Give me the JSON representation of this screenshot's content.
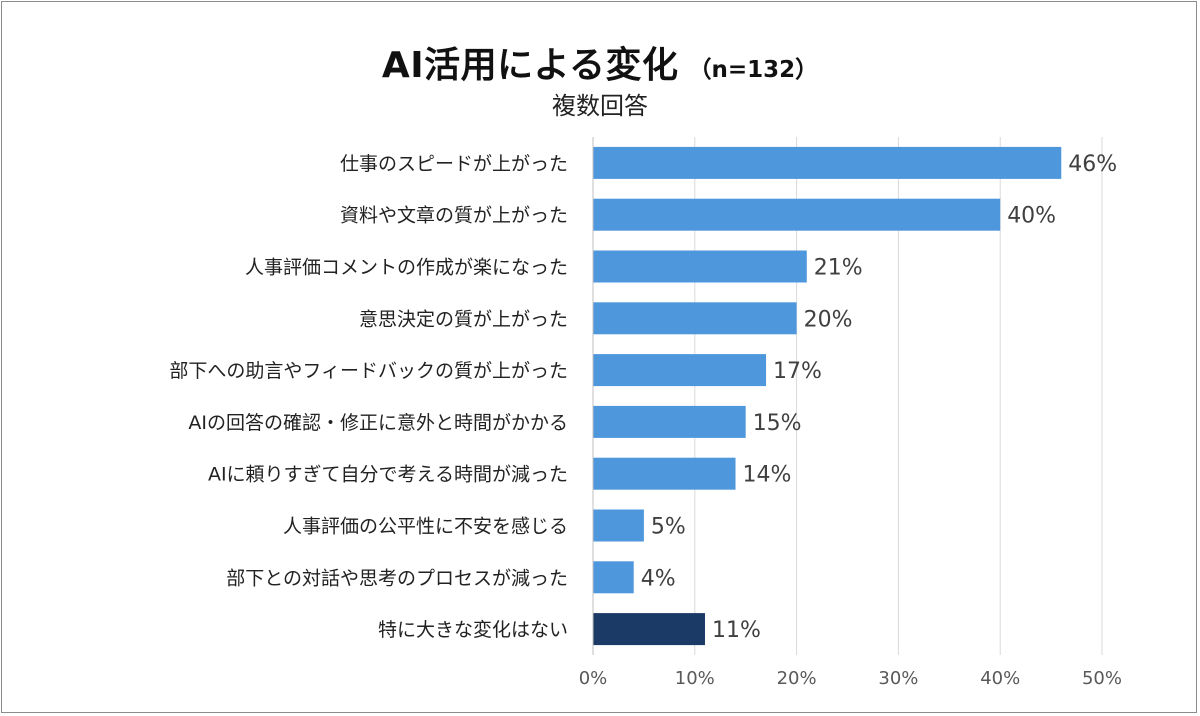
{
  "chart_data": {
    "type": "bar",
    "orientation": "horizontal",
    "title": "AI活用による変化",
    "title_n": "（n=132）",
    "subtitle": "複数回答",
    "categories": [
      "仕事のスピードが上がった",
      "資料や文章の質が上がった",
      "人事評価コメントの作成が楽になった",
      "意思決定の質が上がった",
      "部下への助言やフィードバックの質が上がった",
      "AIの回答の確認・修正に意外と時間がかかる",
      "AIに頼りすぎて自分で考える時間が減った",
      "人事評価の公平性に不安を感じる",
      "部下との対話や思考のプロセスが減った",
      "特に大きな変化はない"
    ],
    "values": [
      46,
      40,
      21,
      20,
      17,
      15,
      14,
      5,
      4,
      11
    ],
    "value_labels": [
      "46%",
      "40%",
      "21%",
      "20%",
      "17%",
      "15%",
      "14%",
      "5%",
      "4%",
      "11%"
    ],
    "bar_colors": [
      "#4f97dc",
      "#4f97dc",
      "#4f97dc",
      "#4f97dc",
      "#4f97dc",
      "#4f97dc",
      "#4f97dc",
      "#4f97dc",
      "#4f97dc",
      "#1b3a66"
    ],
    "xlim": [
      0,
      50
    ],
    "xticks": [
      "0%",
      "10%",
      "20%",
      "30%",
      "40%",
      "50%"
    ],
    "grid": true,
    "legend": "none"
  }
}
